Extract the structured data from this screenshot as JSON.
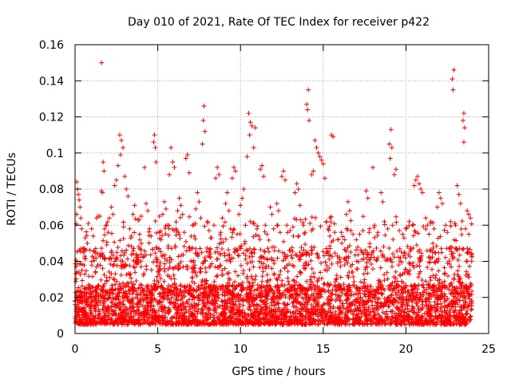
{
  "chart_data": {
    "type": "scatter",
    "title": "Day 010 of 2021, Rate Of TEC Index for receiver p422",
    "xlabel": "GPS time / hours",
    "ylabel": "ROTI / TECUs",
    "xlim": [
      0,
      25
    ],
    "ylim": [
      0,
      0.16
    ],
    "grid": true,
    "marker": "+",
    "color": "#ff0000",
    "x_ticks": [
      0,
      5,
      10,
      15,
      20,
      25
    ],
    "x_tick_labels": [
      "0",
      "5",
      "10",
      "15",
      "20",
      "25"
    ],
    "y_ticks": [
      0,
      0.02,
      0.04,
      0.06,
      0.08,
      0.1,
      0.12,
      0.14,
      0.16
    ],
    "y_tick_labels": [
      "0",
      "0.02",
      "0.04",
      "0.06",
      "0.08",
      "0.1",
      "0.12",
      "0.14",
      "0.16"
    ],
    "series": [
      {
        "name": "ROTI",
        "points": [
          [
            1.6,
            0.15
          ],
          [
            22.9,
            0.146
          ],
          [
            22.8,
            0.141
          ],
          [
            22.85,
            0.135
          ],
          [
            14.1,
            0.135
          ],
          [
            14.0,
            0.127
          ],
          [
            14.05,
            0.124
          ],
          [
            14.15,
            0.118
          ],
          [
            7.8,
            0.126
          ],
          [
            7.75,
            0.118
          ],
          [
            7.85,
            0.112
          ],
          [
            7.7,
            0.105
          ],
          [
            10.5,
            0.122
          ],
          [
            10.6,
            0.117
          ],
          [
            10.7,
            0.115
          ],
          [
            10.55,
            0.11
          ],
          [
            10.9,
            0.114
          ],
          [
            10.8,
            0.103
          ],
          [
            10.4,
            0.098
          ],
          [
            23.5,
            0.122
          ],
          [
            23.45,
            0.118
          ],
          [
            23.55,
            0.114
          ],
          [
            23.5,
            0.106
          ],
          [
            19.1,
            0.113
          ],
          [
            19.0,
            0.105
          ],
          [
            19.15,
            0.103
          ],
          [
            19.05,
            0.097
          ],
          [
            2.7,
            0.11
          ],
          [
            2.8,
            0.107
          ],
          [
            2.9,
            0.103
          ],
          [
            2.75,
            0.099
          ],
          [
            4.8,
            0.11
          ],
          [
            4.75,
            0.106
          ],
          [
            4.85,
            0.103
          ],
          [
            4.9,
            0.095
          ],
          [
            15.5,
            0.11
          ],
          [
            15.6,
            0.109
          ],
          [
            14.5,
            0.107
          ],
          [
            14.6,
            0.103
          ],
          [
            14.7,
            0.1
          ],
          [
            14.8,
            0.098
          ],
          [
            14.9,
            0.096
          ],
          [
            15.0,
            0.094
          ],
          [
            15.1,
            0.086
          ],
          [
            14.4,
            0.09
          ],
          [
            14.3,
            0.088
          ],
          [
            5.8,
            0.103
          ],
          [
            5.9,
            0.095
          ],
          [
            6.0,
            0.092
          ],
          [
            5.7,
            0.088
          ],
          [
            6.8,
            0.099
          ],
          [
            6.7,
            0.097
          ],
          [
            6.9,
            0.089
          ],
          [
            1.7,
            0.095
          ],
          [
            1.75,
            0.09
          ],
          [
            1.6,
            0.079
          ],
          [
            1.65,
            0.078
          ],
          [
            4.2,
            0.092
          ],
          [
            8.6,
            0.092
          ],
          [
            8.7,
            0.088
          ],
          [
            8.5,
            0.086
          ],
          [
            11.3,
            0.093
          ],
          [
            11.2,
            0.091
          ],
          [
            11.4,
            0.087
          ],
          [
            9.6,
            0.092
          ],
          [
            9.7,
            0.09
          ],
          [
            9.5,
            0.086
          ],
          [
            12.6,
            0.09
          ],
          [
            12.5,
            0.087
          ],
          [
            12.7,
            0.085
          ],
          [
            18.0,
            0.092
          ],
          [
            19.4,
            0.091
          ],
          [
            19.3,
            0.088
          ],
          [
            20.7,
            0.087
          ],
          [
            20.6,
            0.085
          ],
          [
            20.8,
            0.083
          ],
          [
            20.5,
            0.082
          ],
          [
            20.9,
            0.08
          ],
          [
            21.0,
            0.078
          ],
          [
            0.1,
            0.084
          ],
          [
            0.15,
            0.08
          ],
          [
            0.2,
            0.077
          ],
          [
            0.25,
            0.074
          ],
          [
            0.3,
            0.07
          ],
          [
            0.1,
            0.066
          ],
          [
            0.35,
            0.064
          ],
          [
            0.4,
            0.058
          ],
          [
            2.6,
            0.093
          ],
          [
            2.5,
            0.085
          ],
          [
            2.4,
            0.082
          ],
          [
            3.0,
            0.087
          ],
          [
            3.1,
            0.08
          ],
          [
            3.2,
            0.076
          ],
          [
            2.2,
            0.07
          ],
          [
            2.3,
            0.066
          ],
          [
            13.4,
            0.083
          ],
          [
            13.5,
            0.08
          ],
          [
            13.3,
            0.078
          ],
          [
            13.6,
            0.071
          ],
          [
            22.0,
            0.078
          ],
          [
            22.1,
            0.075
          ],
          [
            22.2,
            0.072
          ],
          [
            21.9,
            0.07
          ],
          [
            23.1,
            0.082
          ],
          [
            23.2,
            0.077
          ],
          [
            23.3,
            0.072
          ],
          [
            23.7,
            0.068
          ],
          [
            23.8,
            0.066
          ],
          [
            23.9,
            0.064
          ],
          [
            17.6,
            0.079
          ],
          [
            17.7,
            0.075
          ],
          [
            18.5,
            0.078
          ],
          [
            18.6,
            0.073
          ],
          [
            16.5,
            0.073
          ],
          [
            16.6,
            0.068
          ],
          [
            16.4,
            0.066
          ],
          [
            12.2,
            0.072
          ],
          [
            12.3,
            0.068
          ],
          [
            11.8,
            0.07
          ],
          [
            11.9,
            0.066
          ],
          [
            10.2,
            0.08
          ],
          [
            10.1,
            0.075
          ],
          [
            10.0,
            0.071
          ],
          [
            9.9,
            0.066
          ],
          [
            9.2,
            0.078
          ],
          [
            9.1,
            0.072
          ],
          [
            9.3,
            0.068
          ],
          [
            8.9,
            0.064
          ],
          [
            7.4,
            0.078
          ],
          [
            7.5,
            0.073
          ],
          [
            7.3,
            0.069
          ],
          [
            7.6,
            0.064
          ],
          [
            6.3,
            0.075
          ],
          [
            6.4,
            0.071
          ],
          [
            6.2,
            0.068
          ],
          [
            6.5,
            0.066
          ],
          [
            5.4,
            0.073
          ],
          [
            5.5,
            0.069
          ],
          [
            5.3,
            0.066
          ],
          [
            4.3,
            0.072
          ],
          [
            4.4,
            0.068
          ],
          [
            4.0,
            0.065
          ],
          [
            3.8,
            0.063
          ],
          [
            3.6,
            0.071
          ],
          [
            3.5,
            0.066
          ],
          [
            1.4,
            0.065
          ],
          [
            1.3,
            0.064
          ],
          [
            0.8,
            0.061
          ],
          [
            1.0,
            0.058
          ],
          [
            1.1,
            0.054
          ],
          [
            1.9,
            0.06
          ],
          [
            2.0,
            0.056
          ],
          [
            3.3,
            0.058
          ],
          [
            3.4,
            0.054
          ],
          [
            3.9,
            0.055
          ],
          [
            4.5,
            0.058
          ],
          [
            4.6,
            0.054
          ],
          [
            5.1,
            0.056
          ],
          [
            5.2,
            0.052
          ],
          [
            5.6,
            0.06
          ],
          [
            6.1,
            0.058
          ],
          [
            6.6,
            0.056
          ],
          [
            7.1,
            0.06
          ],
          [
            7.2,
            0.054
          ],
          [
            8.0,
            0.062
          ],
          [
            8.1,
            0.057
          ],
          [
            8.2,
            0.053
          ],
          [
            8.4,
            0.06
          ],
          [
            8.8,
            0.056
          ],
          [
            9.4,
            0.058
          ],
          [
            9.8,
            0.055
          ],
          [
            10.3,
            0.06
          ],
          [
            10.6,
            0.062
          ],
          [
            11.0,
            0.058
          ],
          [
            11.1,
            0.054
          ],
          [
            11.5,
            0.06
          ],
          [
            11.6,
            0.055
          ],
          [
            12.0,
            0.058
          ],
          [
            12.4,
            0.056
          ],
          [
            12.8,
            0.06
          ],
          [
            13.0,
            0.057
          ],
          [
            13.2,
            0.054
          ],
          [
            13.8,
            0.06
          ],
          [
            13.9,
            0.056
          ],
          [
            14.2,
            0.061
          ],
          [
            14.3,
            0.057
          ],
          [
            15.2,
            0.062
          ],
          [
            15.3,
            0.058
          ],
          [
            15.4,
            0.054
          ],
          [
            15.7,
            0.056
          ],
          [
            15.9,
            0.052
          ],
          [
            16.1,
            0.056
          ],
          [
            16.3,
            0.052
          ],
          [
            16.8,
            0.055
          ],
          [
            17.0,
            0.052
          ],
          [
            17.2,
            0.055
          ],
          [
            17.4,
            0.057
          ],
          [
            17.8,
            0.058
          ],
          [
            18.1,
            0.06
          ],
          [
            18.3,
            0.056
          ],
          [
            18.7,
            0.062
          ],
          [
            18.9,
            0.058
          ],
          [
            19.2,
            0.06
          ],
          [
            19.6,
            0.057
          ],
          [
            19.8,
            0.055
          ],
          [
            20.0,
            0.058
          ],
          [
            20.2,
            0.062
          ],
          [
            20.4,
            0.06
          ],
          [
            21.2,
            0.064
          ],
          [
            21.3,
            0.06
          ],
          [
            21.5,
            0.062
          ],
          [
            21.7,
            0.058
          ],
          [
            22.4,
            0.06
          ],
          [
            22.5,
            0.056
          ],
          [
            22.7,
            0.062
          ],
          [
            23.0,
            0.06
          ],
          [
            23.6,
            0.058
          ],
          [
            23.8,
            0.055
          ]
        ]
      }
    ]
  }
}
